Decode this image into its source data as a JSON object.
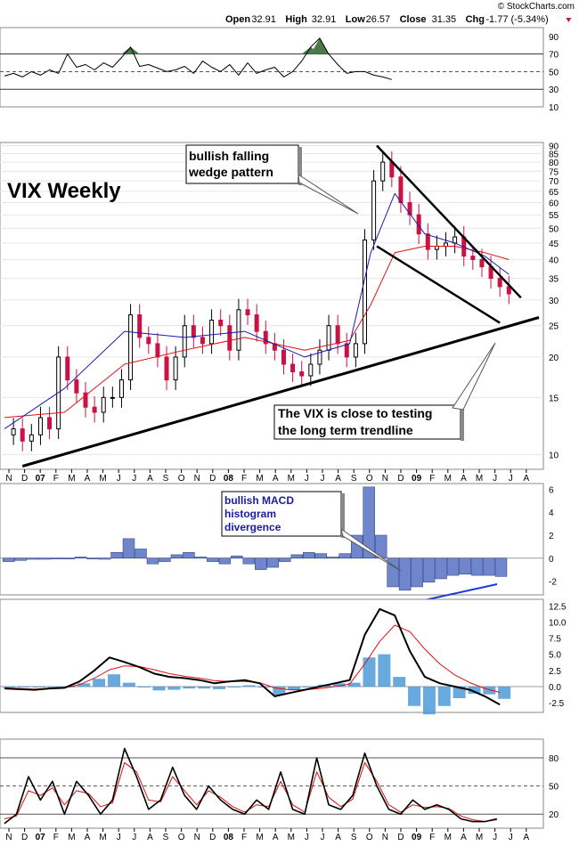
{
  "header": {
    "watermark": "© StockCharts.com",
    "open_label": "Open",
    "open": "32.91",
    "high_label": "High",
    "high": "32.91",
    "low_label": "Low",
    "low": "26.57",
    "close_label": "Close",
    "close": "31.35",
    "chg_label": "Chg",
    "chg": "-1.77 (-5.34%)"
  },
  "annotations": {
    "title": "VIX Weekly",
    "wedge_line1": "bullish falling",
    "wedge_line2": "wedge pattern",
    "trend_line1": "The VIX is close to testing",
    "trend_line2": "the long term trendline",
    "macd_line1": "bullish MACD",
    "macd_line2": "histogram",
    "macd_line3": "divergence"
  },
  "x_axis": {
    "labels": [
      "N",
      "D",
      "07",
      "F",
      "M",
      "A",
      "M",
      "J",
      "J",
      "A",
      "S",
      "O",
      "N",
      "D",
      "08",
      "F",
      "M",
      "A",
      "M",
      "J",
      "J",
      "A",
      "S",
      "O",
      "N",
      "D",
      "09",
      "F",
      "M",
      "A",
      "M",
      "J",
      "J",
      "A"
    ],
    "bold_labels": [
      "07",
      "08",
      "09"
    ]
  },
  "colors": {
    "up_candle": "#000000",
    "down_candle": "#cc1144",
    "ma_fast": "#1a1ab0",
    "ma_slow": "#e01010",
    "histogram": "#6f86cc",
    "macd_hist2": "#4e9ad8",
    "trendline": "#000000",
    "rsi_fill": "#4a7a4a"
  },
  "chart_data": [
    {
      "type": "line",
      "name": "RSI panel",
      "y_ticks": [
        10,
        30,
        50,
        70,
        90
      ],
      "reference_lines": [
        30,
        50,
        70
      ],
      "ylim": [
        10,
        100
      ],
      "x": [
        0,
        3,
        6,
        9,
        12,
        15,
        18,
        21,
        24,
        27,
        30,
        33,
        36,
        39,
        42,
        45,
        48,
        51,
        54,
        57,
        60,
        63,
        66,
        69,
        72,
        75,
        78,
        81,
        84,
        87,
        90,
        93,
        96,
        99,
        102,
        105,
        108,
        111,
        114,
        117,
        120,
        123,
        126,
        129
      ],
      "values": [
        45,
        48,
        44,
        50,
        46,
        52,
        48,
        70,
        55,
        58,
        52,
        60,
        55,
        66,
        78,
        56,
        58,
        54,
        50,
        52,
        56,
        48,
        62,
        55,
        50,
        58,
        46,
        60,
        48,
        52,
        55,
        44,
        50,
        62,
        78,
        88,
        70,
        58,
        48,
        50,
        50,
        46,
        44,
        41
      ]
    },
    {
      "type": "candlestick",
      "name": "VIX price panel",
      "y_ticks": [
        10,
        15,
        20,
        25,
        30,
        35,
        40,
        45,
        50,
        55,
        60,
        65,
        70,
        75,
        80,
        85,
        90
      ],
      "ylim": [
        9,
        92
      ],
      "log_scale": true,
      "close_points": [
        [
          0,
          11.5
        ],
        [
          3,
          12
        ],
        [
          6,
          11
        ],
        [
          9,
          11.5
        ],
        [
          12,
          13
        ],
        [
          15,
          12
        ],
        [
          18,
          20
        ],
        [
          21,
          17
        ],
        [
          24,
          15.5
        ],
        [
          27,
          14
        ],
        [
          30,
          13.5
        ],
        [
          33,
          15
        ],
        [
          36,
          15
        ],
        [
          39,
          17
        ],
        [
          42,
          27
        ],
        [
          45,
          23
        ],
        [
          48,
          22
        ],
        [
          51,
          20
        ],
        [
          54,
          17
        ],
        [
          57,
          20
        ],
        [
          60,
          25
        ],
        [
          63,
          23
        ],
        [
          66,
          22
        ],
        [
          69,
          26
        ],
        [
          72,
          25
        ],
        [
          75,
          21
        ],
        [
          78,
          28
        ],
        [
          81,
          27
        ],
        [
          84,
          24
        ],
        [
          87,
          22
        ],
        [
          90,
          21
        ],
        [
          93,
          19
        ],
        [
          96,
          18
        ],
        [
          99,
          17.5
        ],
        [
          102,
          19
        ],
        [
          105,
          21
        ],
        [
          108,
          25
        ],
        [
          111,
          22
        ],
        [
          114,
          20
        ],
        [
          117,
          22
        ],
        [
          120,
          46
        ],
        [
          123,
          70
        ],
        [
          126,
          80
        ],
        [
          129,
          72
        ],
        [
          132,
          60
        ],
        [
          135,
          55
        ],
        [
          138,
          48
        ],
        [
          141,
          43
        ],
        [
          144,
          44
        ],
        [
          147,
          45
        ],
        [
          150,
          47
        ],
        [
          153,
          41
        ],
        [
          156,
          40
        ],
        [
          159,
          38
        ],
        [
          162,
          35
        ],
        [
          165,
          33
        ],
        [
          168,
          31.35
        ]
      ],
      "ma_fast": [
        [
          0,
          12
        ],
        [
          20,
          16
        ],
        [
          40,
          24
        ],
        [
          60,
          23
        ],
        [
          80,
          24
        ],
        [
          100,
          20
        ],
        [
          115,
          22
        ],
        [
          122,
          42
        ],
        [
          130,
          64
        ],
        [
          140,
          48
        ],
        [
          150,
          45
        ],
        [
          160,
          41
        ],
        [
          168,
          36
        ]
      ],
      "ma_slow": [
        [
          0,
          13
        ],
        [
          20,
          13.5
        ],
        [
          40,
          19
        ],
        [
          60,
          21
        ],
        [
          80,
          23
        ],
        [
          100,
          21
        ],
        [
          115,
          22.5
        ],
        [
          122,
          29
        ],
        [
          130,
          42
        ],
        [
          140,
          44
        ],
        [
          150,
          44
        ],
        [
          160,
          42
        ],
        [
          168,
          40
        ]
      ],
      "trendlines": {
        "long_term": [
          [
            6,
            9.2
          ],
          [
            178,
            26.5
          ]
        ],
        "wedge_upper": [
          [
            124,
            90
          ],
          [
            172,
            30.5
          ]
        ],
        "wedge_lower": [
          [
            124,
            44
          ],
          [
            165,
            25.5
          ]
        ]
      }
    },
    {
      "type": "bar",
      "name": "MACD histogram panel",
      "y_ticks": [
        -2,
        0,
        2,
        4,
        6
      ],
      "ylim": [
        -3.2,
        6.5
      ],
      "x": [
        0,
        4,
        8,
        12,
        16,
        20,
        24,
        28,
        32,
        36,
        40,
        44,
        48,
        52,
        56,
        60,
        64,
        68,
        72,
        76,
        80,
        84,
        88,
        92,
        96,
        100,
        104,
        108,
        112,
        116,
        120,
        124,
        128,
        132,
        136,
        140,
        144,
        148,
        152,
        156,
        160,
        164
      ],
      "values": [
        -0.3,
        -0.2,
        -0.1,
        -0.1,
        0,
        0,
        0.1,
        0,
        -0.1,
        0.5,
        1.7,
        0.8,
        -0.5,
        -0.3,
        0.3,
        0.5,
        0.1,
        -0.3,
        -0.5,
        0.2,
        -0.5,
        -1.0,
        -0.8,
        -0.3,
        0.3,
        0.5,
        0.4,
        0.1,
        0.4,
        2.0,
        6.2,
        2.0,
        -2.5,
        -2.8,
        -2.5,
        -2.1,
        -1.8,
        -1.5,
        -1.4,
        -1.5,
        -1.5,
        -1.6
      ],
      "divergence_line": [
        [
          0,
          -3.5
        ],
        [
          1,
          -2.2
        ]
      ]
    },
    {
      "type": "line",
      "name": "MACD panel",
      "y_ticks": [
        -2.5,
        0.0,
        2.5,
        5.0,
        7.5,
        10.0,
        12.5
      ],
      "ylim": [
        -4,
        13.5
      ],
      "x": [
        0,
        5,
        10,
        15,
        20,
        25,
        30,
        35,
        40,
        45,
        50,
        55,
        60,
        65,
        70,
        75,
        80,
        85,
        90,
        95,
        100,
        105,
        110,
        115,
        120,
        125,
        130,
        135,
        140,
        145,
        150,
        155,
        160,
        165
      ],
      "series": [
        {
          "values": [
            -0.3,
            -0.4,
            -0.5,
            -0.3,
            -0.2,
            0.8,
            2.5,
            4.5,
            3.8,
            3.0,
            2.0,
            1.5,
            1.3,
            1.0,
            0.5,
            0.8,
            1.0,
            0.5,
            -1.5,
            -1.0,
            -0.5,
            0,
            0.5,
            1.0,
            8.0,
            12.0,
            11.0,
            5.5,
            1.5,
            0.5,
            0,
            -0.5,
            -1.5,
            -2.8
          ]
        },
        {
          "values": [
            -0.2,
            -0.3,
            -0.4,
            -0.3,
            -0.2,
            0.3,
            1.3,
            2.6,
            3.2,
            3.1,
            2.6,
            2.0,
            1.6,
            1.3,
            0.9,
            0.8,
            0.8,
            0.6,
            -0.2,
            -0.5,
            -0.5,
            -0.3,
            0,
            0.4,
            3.5,
            7.0,
            9.5,
            8.5,
            5.8,
            3.5,
            1.8,
            0.6,
            -0.3,
            -0.9
          ]
        },
        {
          "values": [
            -0.1,
            -0.1,
            -0.1,
            0,
            0,
            0.5,
            1.2,
            1.9,
            0.6,
            -0.1,
            -0.6,
            -0.5,
            -0.3,
            -0.3,
            -0.4,
            0,
            0.2,
            -0.1,
            -1.3,
            -0.5,
            0,
            0.3,
            0.5,
            0.6,
            4.5,
            5.0,
            1.5,
            -3.0,
            -4.3,
            -3.0,
            -1.8,
            -1.1,
            -1.2,
            -1.9
          ]
        }
      ]
    },
    {
      "type": "line",
      "name": "Stochastic panel",
      "y_ticks": [
        20,
        50,
        80
      ],
      "reference_lines": [
        20,
        50,
        80
      ],
      "ylim": [
        5,
        100
      ],
      "x": [
        0,
        4,
        8,
        12,
        16,
        20,
        24,
        28,
        32,
        36,
        40,
        44,
        48,
        52,
        56,
        60,
        64,
        68,
        72,
        76,
        80,
        84,
        88,
        92,
        96,
        100,
        104,
        108,
        112,
        116,
        120,
        124,
        128,
        132,
        136,
        140,
        144,
        148,
        152,
        156,
        160,
        164
      ],
      "series": [
        {
          "values": [
            10,
            20,
            60,
            35,
            55,
            20,
            55,
            40,
            20,
            35,
            90,
            60,
            25,
            35,
            70,
            40,
            25,
            50,
            35,
            25,
            20,
            35,
            25,
            65,
            25,
            20,
            80,
            30,
            25,
            40,
            85,
            50,
            25,
            20,
            35,
            25,
            30,
            25,
            15,
            12,
            12,
            15
          ]
        },
        {
          "values": [
            15,
            18,
            45,
            40,
            48,
            30,
            45,
            42,
            28,
            32,
            75,
            65,
            35,
            33,
            60,
            45,
            30,
            45,
            38,
            28,
            22,
            30,
            28,
            55,
            30,
            22,
            65,
            38,
            28,
            36,
            75,
            55,
            30,
            22,
            30,
            27,
            28,
            26,
            18,
            14,
            12,
            14
          ]
        }
      ]
    }
  ]
}
